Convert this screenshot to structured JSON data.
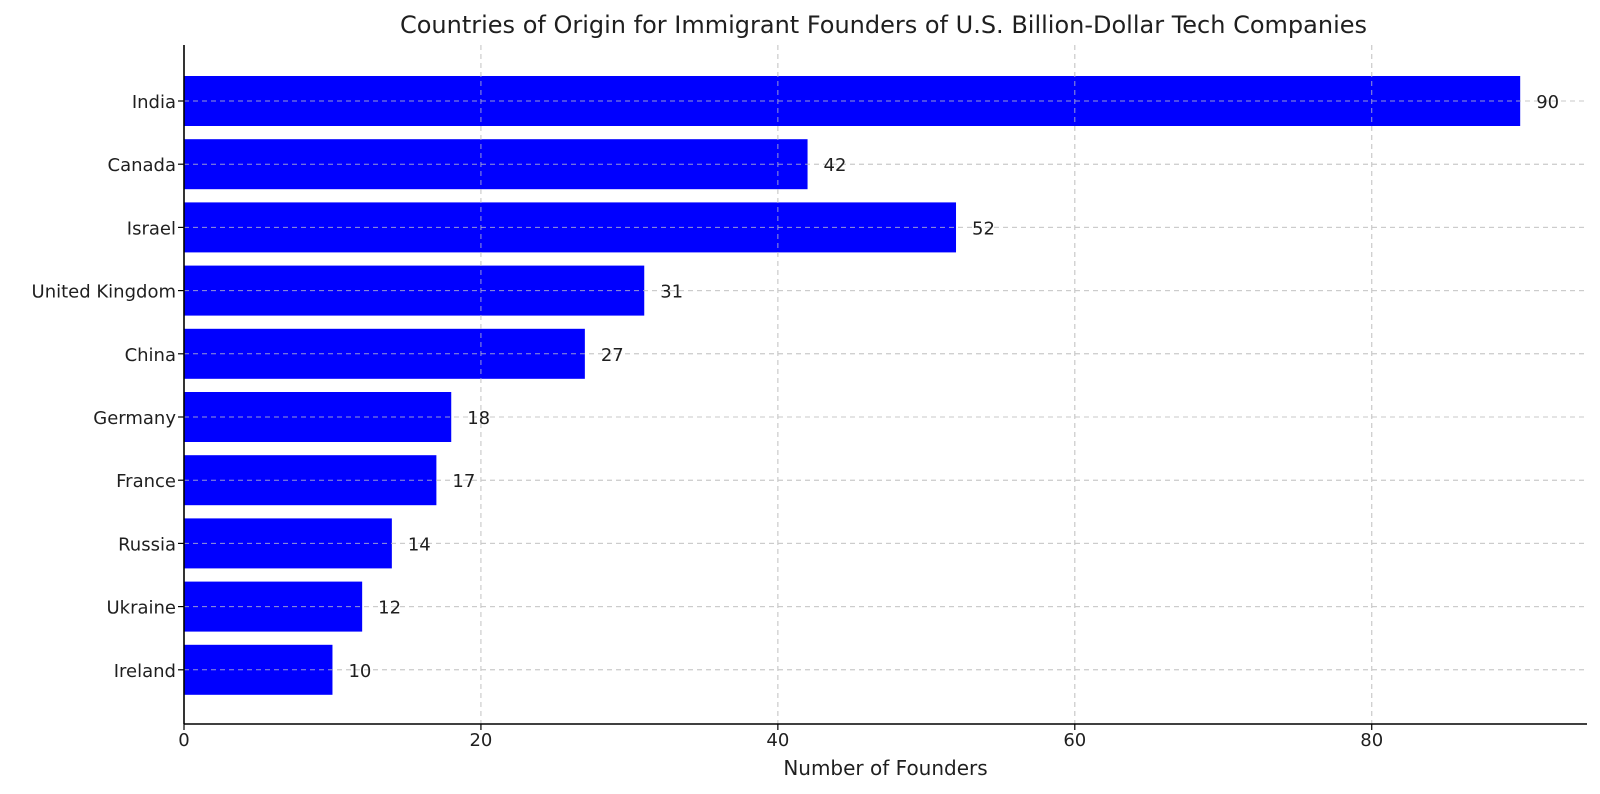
{
  "chart_data": {
    "type": "bar",
    "orientation": "horizontal",
    "title": "Countries of Origin for Immigrant Founders of U.S. Billion-Dollar Tech Companies",
    "xlabel": "Number of Founders",
    "ylabel": "",
    "categories": [
      "India",
      "Canada",
      "Israel",
      "United Kingdom",
      "China",
      "Germany",
      "France",
      "Russia",
      "Ukraine",
      "Ireland"
    ],
    "values": [
      90,
      42,
      52,
      31,
      27,
      18,
      17,
      14,
      12,
      10
    ],
    "value_labels": [
      "90",
      "42",
      "52",
      "31",
      "27",
      "18",
      "17",
      "14",
      "12",
      "10"
    ],
    "xlim": [
      0,
      94.5
    ],
    "x_ticks": [
      0,
      20,
      40,
      60,
      80
    ],
    "x_tick_labels": [
      "0",
      "20",
      "40",
      "60",
      "80"
    ],
    "grid": true,
    "grid_style": "dashed",
    "legend": "none",
    "bar_color": "#0000ff",
    "text_color": "#1f1f1f",
    "grid_color": "#c8c8c8"
  }
}
